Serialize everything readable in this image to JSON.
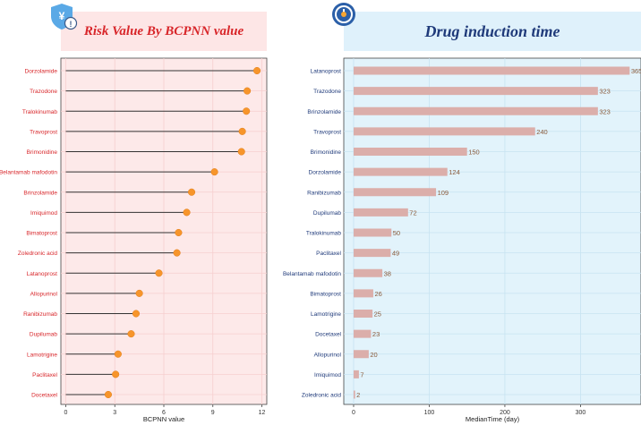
{
  "icons": {
    "left": "yen-shield-alert-icon",
    "right": "clock-icon"
  },
  "colors": {
    "left_bg": "#fde9e9",
    "left_title_bg": "#fde6e6",
    "left_title": "#d8262a",
    "left_labels": "#d8262a",
    "dot": "#f7952b",
    "right_bg": "#e2f3fb",
    "right_title_bg": "#dff1fb",
    "right_title": "#1f3a7a",
    "right_labels": "#1f3a7a",
    "bar": "#dbaeaa",
    "bar_label": "#8a5a3a"
  },
  "chart_data": [
    {
      "type": "lollipop",
      "title": "Risk Value By BCPNN value",
      "xlabel": "BCPNN value",
      "ylabel": "",
      "xlim": [
        -0.3,
        12.3
      ],
      "xticks": [
        0,
        3,
        6,
        9,
        12
      ],
      "grid": true,
      "categories": [
        "Dorzolamide",
        "Trazodone",
        "Tralokinumab",
        "Travoprost",
        "Brimonidine",
        "Belantamab mafodotin",
        "Brinzolamide",
        "Imiquimod",
        "Bimatoprost",
        "Zoledronic acid",
        "Latanoprost",
        "Allopurinol",
        "Ranibizumab",
        "Dupilumab",
        "Lamotrigine",
        "Paclitaxel",
        "Docetaxel"
      ],
      "values": [
        11.7,
        11.1,
        11.05,
        10.8,
        10.75,
        9.1,
        7.7,
        7.4,
        6.9,
        6.8,
        5.7,
        4.5,
        4.3,
        4.0,
        3.2,
        3.05,
        2.6
      ]
    },
    {
      "type": "bar",
      "orientation": "horizontal",
      "title": "Drug induction time",
      "xlabel": "MedianTime (day)",
      "ylabel": "",
      "xlim": [
        -13,
        380
      ],
      "xticks": [
        0,
        100,
        200,
        300
      ],
      "grid": true,
      "categories": [
        "Latanoprost",
        "Trazodone",
        "Brinzolamide",
        "Travoprost",
        "Brimonidine",
        "Dorzolamide",
        "Ranibizumab",
        "Dupilumab",
        "Tralokinumab",
        "Paclitaxel",
        "Belantamab mafodotin",
        "Bimatoprost",
        "Lamotrigine",
        "Docetaxel",
        "Allopurinol",
        "Imiquimod",
        "Zoledronic acid"
      ],
      "values": [
        365,
        323,
        323,
        240,
        150,
        124,
        109,
        72,
        50,
        49,
        38,
        26,
        25,
        23,
        20,
        7,
        2
      ]
    }
  ]
}
